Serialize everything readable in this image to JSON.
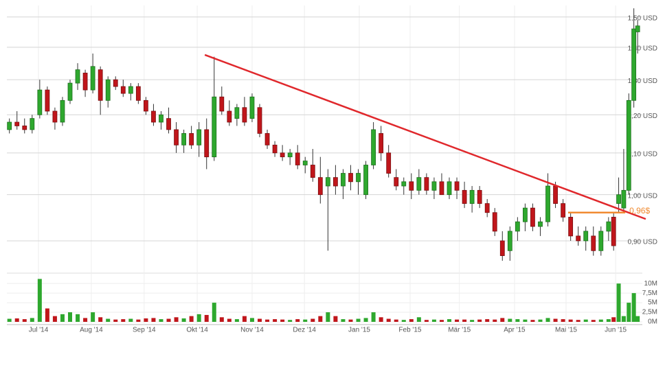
{
  "chart_data": {
    "type": "candlestick",
    "log_scale": true,
    "grid": true,
    "up_color": "#2ea82e",
    "down_color": "#c0161b",
    "xlim": [
      0,
      250
    ],
    "ylim": [
      0.84,
      1.54
    ],
    "volume_ylim": [
      0,
      12000000
    ],
    "xticks": [
      {
        "value": 12.5,
        "label": "Jul '14"
      },
      {
        "value": 33.4,
        "label": "Aug '14"
      },
      {
        "value": 54.3,
        "label": "Sep '14"
      },
      {
        "value": 75.3,
        "label": "Okt '14"
      },
      {
        "value": 97,
        "label": "Nov '14"
      },
      {
        "value": 117.7,
        "label": "Dez '14"
      },
      {
        "value": 139.4,
        "label": "Jan '15"
      },
      {
        "value": 159.5,
        "label": "Feb '15"
      },
      {
        "value": 179,
        "label": "Mär '15"
      },
      {
        "value": 200.8,
        "label": "Apr '15"
      },
      {
        "value": 221.2,
        "label": "Mai '15"
      },
      {
        "value": 240.8,
        "label": "Jun '15"
      }
    ],
    "yticks": [
      {
        "value": 1.5,
        "label": "1,50 USD"
      },
      {
        "value": 1.4,
        "label": "1,40 USD"
      },
      {
        "value": 1.3,
        "label": "1,30 USD"
      },
      {
        "value": 1.2,
        "label": "1,20 USD"
      },
      {
        "value": 1.1,
        "label": "1,10 USD"
      },
      {
        "value": 1.0,
        "label": "1,00 USD"
      },
      {
        "value": 0.9,
        "label": "0,90 USD"
      }
    ],
    "volume_ticks": [
      {
        "value": 10000000,
        "label": "10M"
      },
      {
        "value": 7500000,
        "label": "7,5M"
      },
      {
        "value": 5000000,
        "label": "5M"
      },
      {
        "value": 2500000,
        "label": "2,5M"
      },
      {
        "value": 0,
        "label": "0M"
      }
    ],
    "x": [
      1,
      4,
      7,
      10,
      13,
      16,
      19,
      22,
      25,
      28,
      31,
      34,
      37,
      40,
      43,
      46,
      49,
      52,
      55,
      58,
      61,
      64,
      67,
      70,
      73,
      76,
      79,
      82,
      85,
      88,
      91,
      94,
      97,
      100,
      103,
      106,
      109,
      112,
      115,
      118,
      121,
      124,
      127,
      130,
      133,
      136,
      139,
      142,
      145,
      148,
      151,
      154,
      157,
      160,
      163,
      166,
      169,
      172,
      175,
      178,
      181,
      184,
      187,
      190,
      193,
      196,
      199,
      202,
      205,
      208,
      211,
      214,
      217,
      220,
      223,
      226,
      229,
      232,
      235,
      238,
      240,
      242,
      244,
      246,
      248,
      249.5
    ],
    "open": [
      1.16,
      1.18,
      1.17,
      1.16,
      1.2,
      1.27,
      1.21,
      1.18,
      1.24,
      1.29,
      1.32,
      1.27,
      1.33,
      1.24,
      1.3,
      1.28,
      1.26,
      1.28,
      1.24,
      1.21,
      1.18,
      1.19,
      1.16,
      1.12,
      1.15,
      1.12,
      1.16,
      1.09,
      1.25,
      1.21,
      1.19,
      1.22,
      1.19,
      1.22,
      1.15,
      1.12,
      1.1,
      1.09,
      1.1,
      1.07,
      1.07,
      1.04,
      1.02,
      1.04,
      1.02,
      1.05,
      1.03,
      1.0,
      1.07,
      1.15,
      1.1,
      1.04,
      1.02,
      1.03,
      1.01,
      1.04,
      1.01,
      1.03,
      1.0,
      1.03,
      1.01,
      0.98,
      1.01,
      0.98,
      0.96,
      0.9,
      0.88,
      0.92,
      0.94,
      0.97,
      0.93,
      0.94,
      1.02,
      0.98,
      0.95,
      0.91,
      0.9,
      0.91,
      0.88,
      0.92,
      0.95,
      0.98,
      0.97,
      1.01,
      1.24,
      1.45
    ],
    "high": [
      1.19,
      1.21,
      1.19,
      1.2,
      1.3,
      1.28,
      1.22,
      1.25,
      1.3,
      1.35,
      1.33,
      1.38,
      1.34,
      1.31,
      1.31,
      1.3,
      1.29,
      1.29,
      1.25,
      1.23,
      1.21,
      1.22,
      1.18,
      1.16,
      1.17,
      1.18,
      1.19,
      1.37,
      1.28,
      1.24,
      1.23,
      1.25,
      1.26,
      1.23,
      1.16,
      1.13,
      1.12,
      1.11,
      1.12,
      1.09,
      1.11,
      1.09,
      1.06,
      1.07,
      1.06,
      1.07,
      1.06,
      1.08,
      1.18,
      1.17,
      1.12,
      1.06,
      1.04,
      1.05,
      1.06,
      1.05,
      1.04,
      1.05,
      1.04,
      1.04,
      1.03,
      1.02,
      1.02,
      0.99,
      0.97,
      0.92,
      0.93,
      0.95,
      0.98,
      0.98,
      0.95,
      1.05,
      1.03,
      0.99,
      0.96,
      0.93,
      0.93,
      0.93,
      0.93,
      0.95,
      0.96,
      1.04,
      1.11,
      1.26,
      1.53,
      1.49
    ],
    "low": [
      1.15,
      1.16,
      1.15,
      1.15,
      1.19,
      1.2,
      1.16,
      1.17,
      1.23,
      1.27,
      1.25,
      1.26,
      1.2,
      1.22,
      1.27,
      1.25,
      1.24,
      1.23,
      1.2,
      1.17,
      1.16,
      1.15,
      1.1,
      1.1,
      1.11,
      1.09,
      1.06,
      1.08,
      1.2,
      1.17,
      1.17,
      1.17,
      1.18,
      1.14,
      1.11,
      1.09,
      1.08,
      1.07,
      1.06,
      1.05,
      1.03,
      0.98,
      0.88,
      1.0,
      0.99,
      1.01,
      1.0,
      0.99,
      1.06,
      1.08,
      1.04,
      1.01,
      1.0,
      0.99,
      1.0,
      1.0,
      0.99,
      1.0,
      0.99,
      0.99,
      0.97,
      0.96,
      0.97,
      0.95,
      0.91,
      0.86,
      0.86,
      0.9,
      0.92,
      0.92,
      0.91,
      0.93,
      0.97,
      0.94,
      0.9,
      0.89,
      0.88,
      0.87,
      0.87,
      0.9,
      0.88,
      0.96,
      0.96,
      1.0,
      1.22,
      1.38
    ],
    "close": [
      1.18,
      1.17,
      1.16,
      1.19,
      1.27,
      1.21,
      1.18,
      1.24,
      1.29,
      1.33,
      1.27,
      1.34,
      1.24,
      1.3,
      1.28,
      1.26,
      1.28,
      1.24,
      1.21,
      1.18,
      1.2,
      1.16,
      1.12,
      1.15,
      1.12,
      1.16,
      1.09,
      1.25,
      1.21,
      1.18,
      1.22,
      1.18,
      1.25,
      1.15,
      1.12,
      1.1,
      1.09,
      1.1,
      1.07,
      1.08,
      1.04,
      1.0,
      1.04,
      1.02,
      1.05,
      1.03,
      1.05,
      1.07,
      1.16,
      1.1,
      1.05,
      1.02,
      1.03,
      1.01,
      1.04,
      1.01,
      1.03,
      1.0,
      1.03,
      1.01,
      0.98,
      1.01,
      0.98,
      0.96,
      0.92,
      0.87,
      0.92,
      0.94,
      0.97,
      0.93,
      0.94,
      1.02,
      0.98,
      0.95,
      0.91,
      0.9,
      0.92,
      0.88,
      0.92,
      0.94,
      0.89,
      1.0,
      1.01,
      1.24,
      1.46,
      1.47
    ],
    "volume": [
      800000,
      900000,
      700000,
      1000000,
      11200000,
      3500000,
      1500000,
      2000000,
      2500000,
      2000000,
      1000000,
      2500000,
      1200000,
      800000,
      600000,
      700000,
      800000,
      600000,
      900000,
      1000000,
      700000,
      800000,
      1200000,
      900000,
      1500000,
      2000000,
      1800000,
      5000000,
      1200000,
      800000,
      700000,
      1500000,
      1000000,
      800000,
      600000,
      700000,
      600000,
      500000,
      700000,
      600000,
      800000,
      1500000,
      2500000,
      1500000,
      700000,
      600000,
      800000,
      1000000,
      2500000,
      1200000,
      800000,
      600000,
      500000,
      700000,
      1200000,
      500000,
      600000,
      500000,
      700000,
      600000,
      600000,
      500000,
      600000,
      700000,
      600000,
      1000000,
      800000,
      700000,
      600000,
      500000,
      600000,
      1000000,
      800000,
      700000,
      600000,
      500000,
      600000,
      500000,
      600000,
      700000,
      1200000,
      10000000,
      1500000,
      5000000,
      7500000,
      1500000
    ],
    "annotations": [
      {
        "x": [
          78.3,
          252.7
        ],
        "y": [
          1.376,
          0.946
        ],
        "color": "#e0282c"
      },
      {
        "x": [
          222,
          244.6
        ],
        "y": [
          0.96,
          0.96
        ],
        "color": "#f08a30",
        "label": "0,96$"
      }
    ]
  }
}
